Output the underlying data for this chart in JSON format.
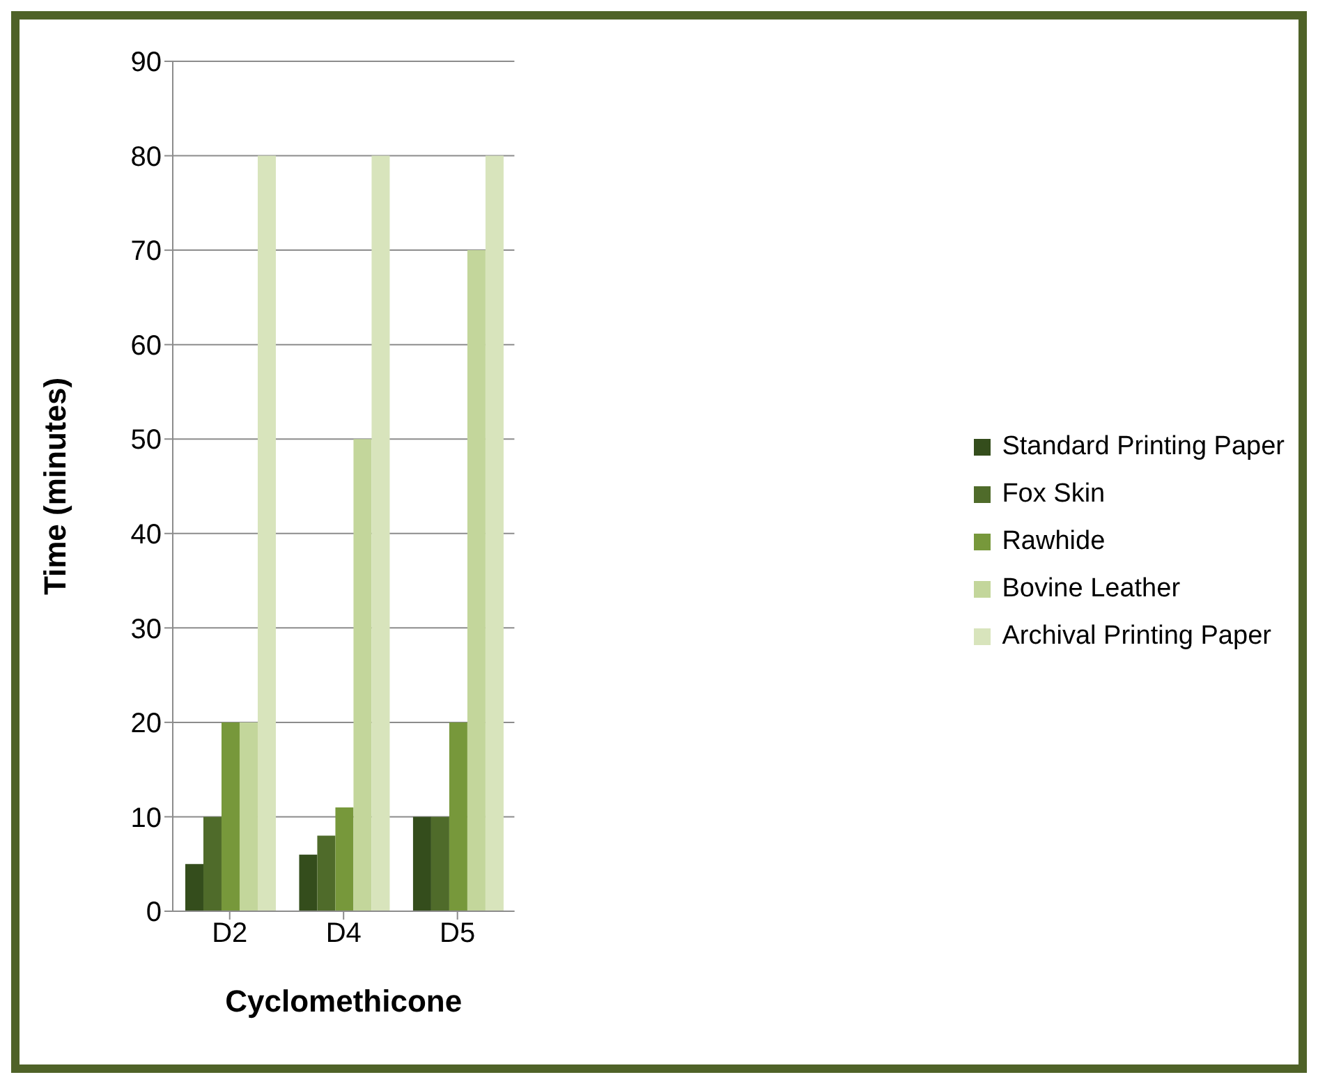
{
  "chart_data": {
    "type": "bar",
    "xlabel": "Cyclomethicone",
    "ylabel": "Time (minutes)",
    "categories": [
      "D2",
      "D4",
      "D5"
    ],
    "series": [
      {
        "name": "Standard Printing Paper",
        "color": "#344d1c",
        "values": [
          5,
          6,
          10
        ]
      },
      {
        "name": "Fox Skin",
        "color": "#4f6b2a",
        "values": [
          10,
          8,
          10
        ]
      },
      {
        "name": "Rawhide",
        "color": "#77983b",
        "values": [
          20,
          11,
          20
        ]
      },
      {
        "name": "Bovine Leather",
        "color": "#c3d69b",
        "values": [
          20,
          50,
          70
        ]
      },
      {
        "name": "Archival Printing Paper",
        "color": "#d8e4bc",
        "values": [
          80,
          80,
          80
        ]
      }
    ],
    "ylim": [
      0,
      90
    ],
    "yticks": [
      0,
      10,
      20,
      30,
      40,
      50,
      60,
      70,
      80,
      90
    ],
    "grid": "y",
    "legend": "right"
  }
}
